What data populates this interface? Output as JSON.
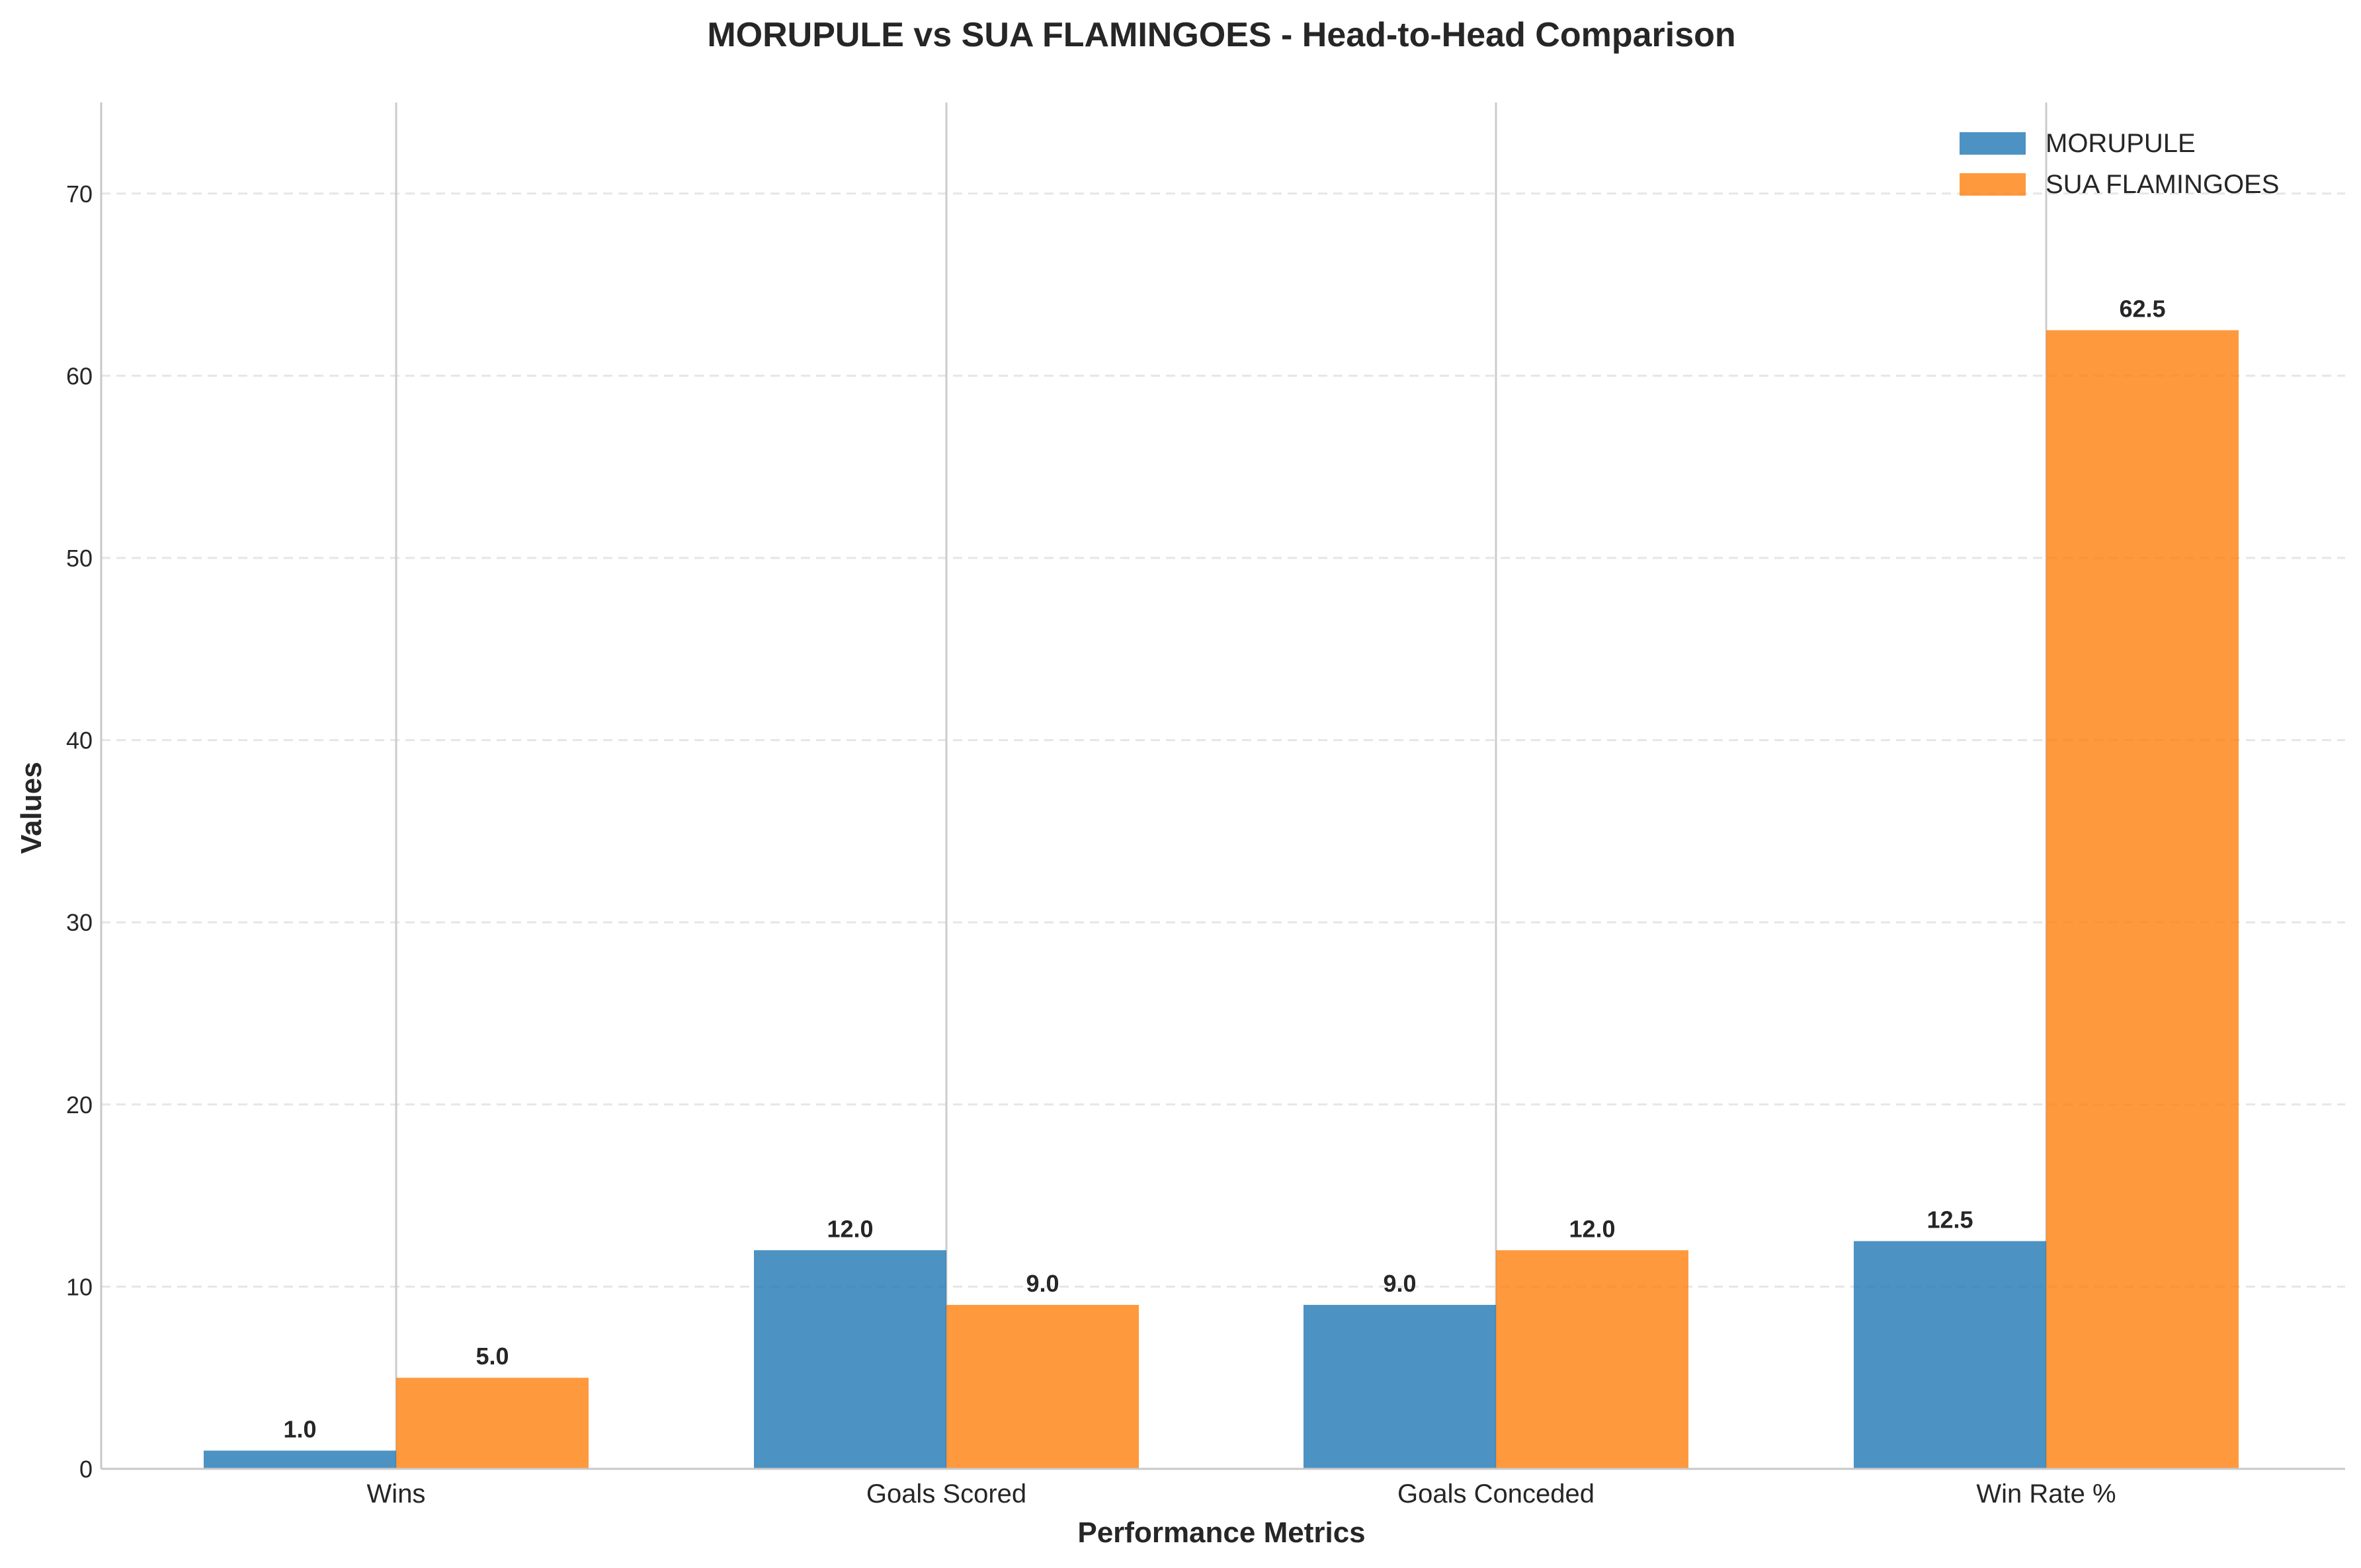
{
  "chart_data": {
    "type": "bar",
    "title": "MORUPULE vs SUA FLAMINGOES - Head-to-Head Comparison",
    "xlabel": "Performance Metrics",
    "ylabel": "Values",
    "categories": [
      "Wins",
      "Goals Scored",
      "Goals Conceded",
      "Win Rate %"
    ],
    "series": [
      {
        "name": "MORUPULE",
        "color": "#1f77b4",
        "values": [
          1.0,
          12.0,
          9.0,
          12.5
        ],
        "labels": [
          "1.0",
          "12.0",
          "9.0",
          "12.5"
        ]
      },
      {
        "name": "SUA FLAMINGOES",
        "color": "#ff7f0e",
        "values": [
          5.0,
          9.0,
          12.0,
          62.5
        ],
        "labels": [
          "5.0",
          "9.0",
          "12.0",
          "62.5"
        ]
      }
    ],
    "ylim": [
      0,
      75
    ],
    "yticks": [
      0,
      10,
      20,
      30,
      40,
      50,
      60,
      70
    ],
    "grid": "y dashed, x solid",
    "legend": "top-right"
  }
}
